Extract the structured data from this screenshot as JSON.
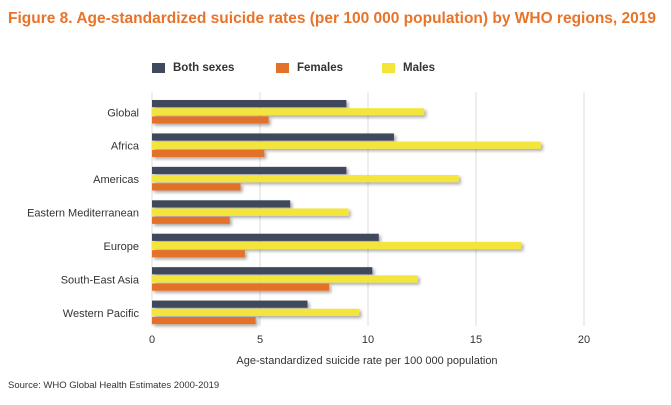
{
  "title": "Figure 8. Age-standardized suicide rates (per 100 000 population) by WHO regions, 2019",
  "source": "Source: WHO Global Health Estimates 2000-2019",
  "colors": {
    "both": "#414a5c",
    "females": "#e4712a",
    "males": "#f3e53a",
    "grid": "#dcdcdc",
    "text": "#333333"
  },
  "chart_data": {
    "type": "bar",
    "orientation": "horizontal",
    "categories": [
      "Global",
      "Africa",
      "Americas",
      "Eastern Mediterranean",
      "Europe",
      "South-East Asia",
      "Western Pacific"
    ],
    "series": [
      {
        "name": "Both sexes",
        "values": [
          9.0,
          11.2,
          9.0,
          6.4,
          10.5,
          10.2,
          7.2
        ]
      },
      {
        "name": "Males",
        "values": [
          12.6,
          18.0,
          14.2,
          9.1,
          17.1,
          12.3,
          9.6
        ]
      },
      {
        "name": "Females",
        "values": [
          5.4,
          5.2,
          4.1,
          3.6,
          4.3,
          8.2,
          4.8
        ]
      }
    ],
    "legend": [
      "Both sexes",
      "Females",
      "Males"
    ],
    "xlabel": "Age-standardized suicide rate per 100 000 population",
    "ylabel": "",
    "xlim": [
      0,
      20
    ],
    "xticks": [
      "0",
      "5",
      "10",
      "15",
      "20"
    ],
    "grid": true,
    "legend_position": "top"
  }
}
